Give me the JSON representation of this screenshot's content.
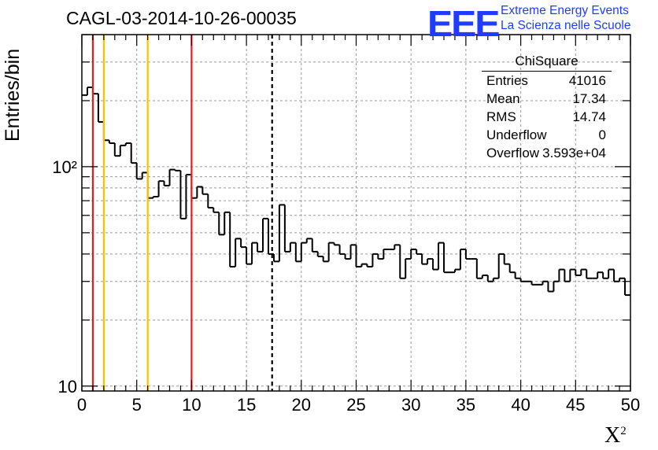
{
  "title": "CAGL-03-2014-10-26-00035",
  "logo": {
    "mark": "EEE",
    "line1": "Extreme Energy Events",
    "line2": "La Scienza nelle Scuole",
    "color": "#1f3cff"
  },
  "axes": {
    "ylabel": "Entries/bin",
    "xlabel_base": "X",
    "xlabel_sup": "2"
  },
  "stats": {
    "name": "ChiSquare",
    "rows": [
      {
        "label": "Entries",
        "value": "41016"
      },
      {
        "label": "Mean",
        "value": "17.34"
      },
      {
        "label": "RMS",
        "value": "14.74"
      },
      {
        "label": "Underflow",
        "value": "0"
      },
      {
        "label": "Overflow",
        "value": "3.593e+04"
      }
    ]
  },
  "chart_data": {
    "type": "histogram",
    "yscale": "log",
    "xlim": [
      0,
      50
    ],
    "ylim": [
      9.5,
      400
    ],
    "bin_width": 0.5,
    "grid": true,
    "x_ticks": [
      0,
      5,
      10,
      15,
      20,
      25,
      30,
      35,
      40,
      45,
      50
    ],
    "y_tick_labels": [
      {
        "value": 10,
        "label": "10"
      },
      {
        "value": 100,
        "label": "10²"
      }
    ],
    "values": [
      212,
      230,
      215,
      160,
      132,
      128,
      112,
      125,
      128,
      104,
      88,
      94,
      72,
      73,
      86,
      82,
      97,
      96,
      58,
      92,
      72,
      81,
      75,
      65,
      62,
      49,
      62,
      35,
      47,
      43,
      36,
      45,
      41,
      58,
      40,
      37,
      67,
      41,
      45,
      37,
      45,
      47,
      41,
      39,
      37,
      45,
      44,
      40,
      38,
      44,
      35,
      36,
      35,
      40,
      38,
      42,
      42,
      44,
      31,
      38,
      42,
      40,
      36,
      38,
      34,
      45,
      33,
      33,
      34,
      42,
      38,
      38,
      31,
      32,
      30,
      31,
      40,
      36,
      33,
      31,
      30,
      30,
      29,
      29,
      30,
      27,
      30,
      34,
      30,
      34,
      32,
      34,
      31,
      31,
      33,
      31,
      34,
      30,
      31,
      26
    ],
    "reference_lines": [
      {
        "x": 1,
        "color": "#e02020",
        "style": "solid"
      },
      {
        "x": 2,
        "color": "#ffc000",
        "style": "solid"
      },
      {
        "x": 6,
        "color": "#ffc000",
        "style": "solid"
      },
      {
        "x": 10,
        "color": "#e02020",
        "style": "solid"
      },
      {
        "x": 17.34,
        "color": "#000000",
        "style": "dashed"
      }
    ]
  }
}
